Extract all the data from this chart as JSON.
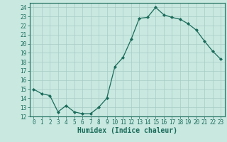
{
  "x": [
    0,
    1,
    2,
    3,
    4,
    5,
    6,
    7,
    8,
    9,
    10,
    11,
    12,
    13,
    14,
    15,
    16,
    17,
    18,
    19,
    20,
    21,
    22,
    23
  ],
  "y": [
    15,
    14.5,
    14.3,
    12.5,
    13.2,
    12.5,
    12.3,
    12.3,
    13.0,
    14.0,
    17.5,
    18.5,
    20.5,
    22.8,
    22.9,
    24.0,
    23.2,
    22.9,
    22.7,
    22.2,
    21.5,
    20.3,
    19.2,
    18.3
  ],
  "line_color": "#1a6b5a",
  "marker": "D",
  "markersize": 2.0,
  "linewidth": 0.9,
  "bg_color": "#c8e8e0",
  "grid_color": "#a8ccc4",
  "xlabel": "Humidex (Indice chaleur)",
  "xlim": [
    -0.5,
    23.5
  ],
  "ylim": [
    12,
    24.5
  ],
  "yticks": [
    12,
    13,
    14,
    15,
    16,
    17,
    18,
    19,
    20,
    21,
    22,
    23,
    24
  ],
  "xticks": [
    0,
    1,
    2,
    3,
    4,
    5,
    6,
    7,
    8,
    9,
    10,
    11,
    12,
    13,
    14,
    15,
    16,
    17,
    18,
    19,
    20,
    21,
    22,
    23
  ],
  "tick_fontsize": 5.5,
  "xlabel_fontsize": 7.0,
  "tick_color": "#1a6b5a",
  "spine_color": "#1a6b5a",
  "label_color": "#1a6b5a"
}
